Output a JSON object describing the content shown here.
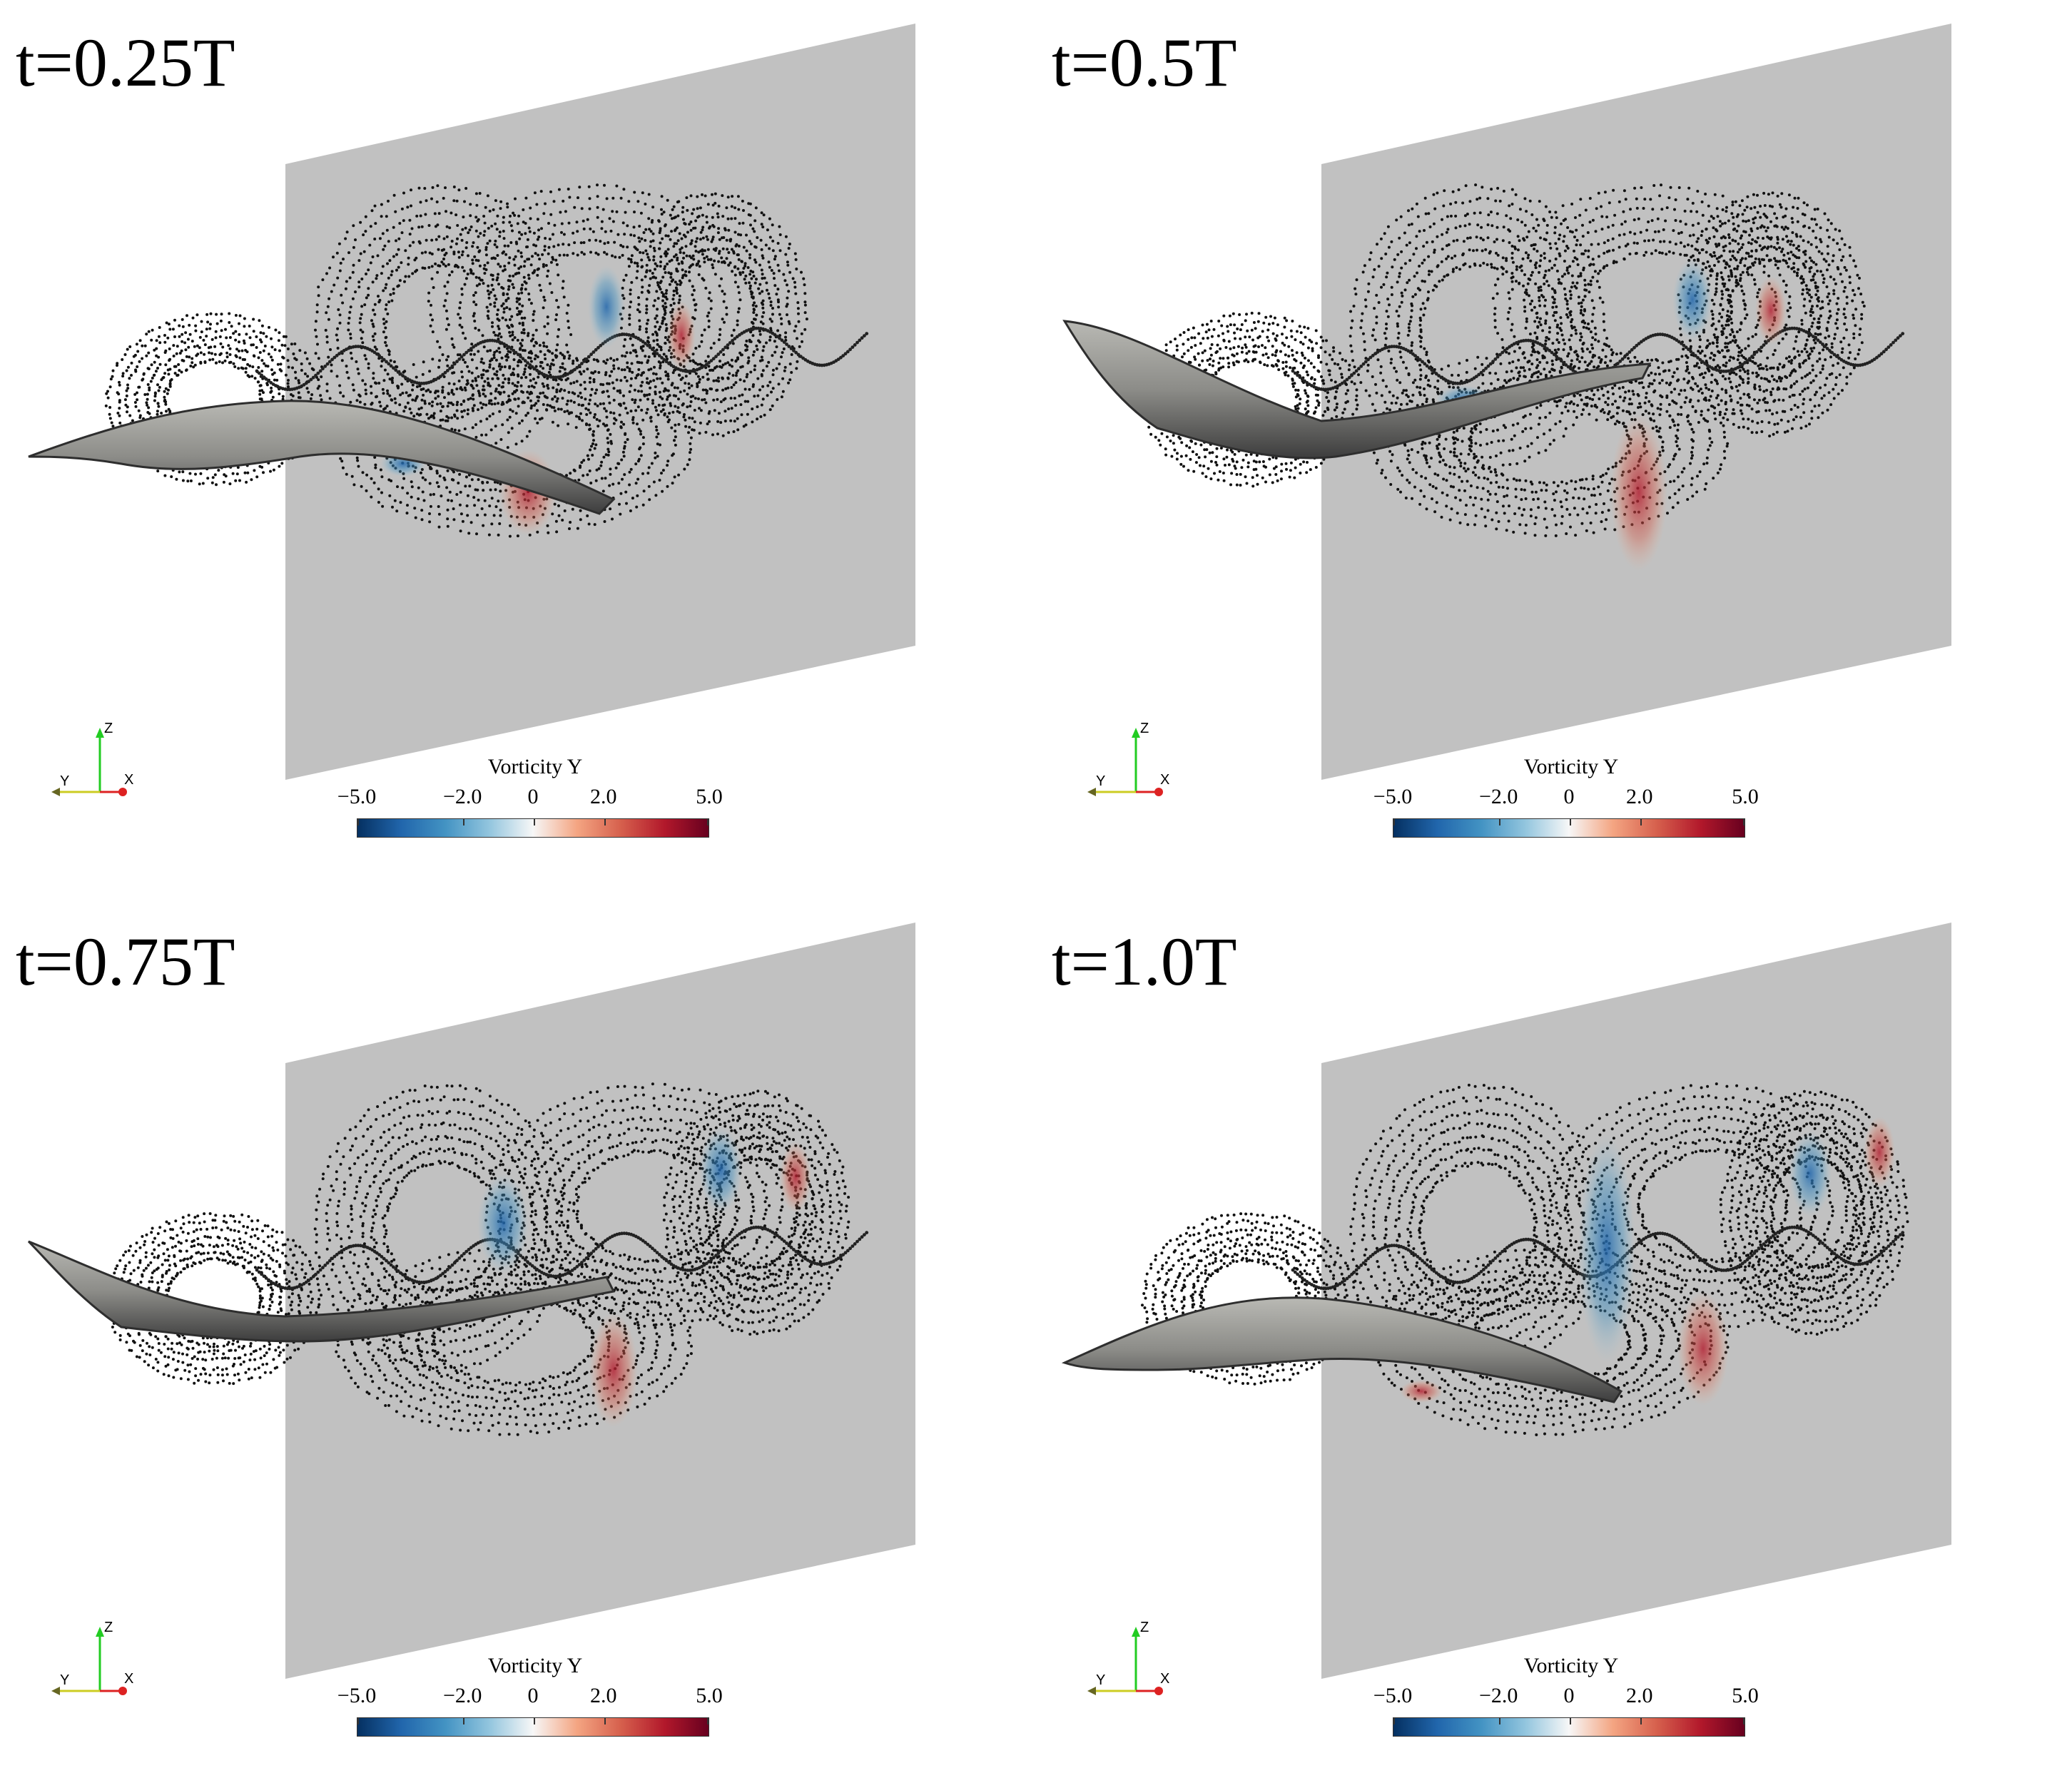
{
  "panels": [
    {
      "time": "t=0.25T"
    },
    {
      "time": "t=0.5T"
    },
    {
      "time": "t=0.75T"
    },
    {
      "time": "t=1.0T"
    }
  ],
  "colorbar": {
    "title": "Vorticity Y",
    "ticks": [
      "−5.0",
      "−2.0",
      "0",
      "2.0",
      "5.0"
    ],
    "values": [
      -5.0,
      -2.0,
      0,
      2.0,
      5.0
    ],
    "colors": [
      "#053061",
      "#2166ac",
      "#4393c3",
      "#92c5de",
      "#f7f7f7",
      "#f4a582",
      "#d6604d",
      "#b2182b",
      "#67001f"
    ]
  },
  "axes": {
    "z": "Z",
    "y": "Y",
    "x": "X"
  }
}
